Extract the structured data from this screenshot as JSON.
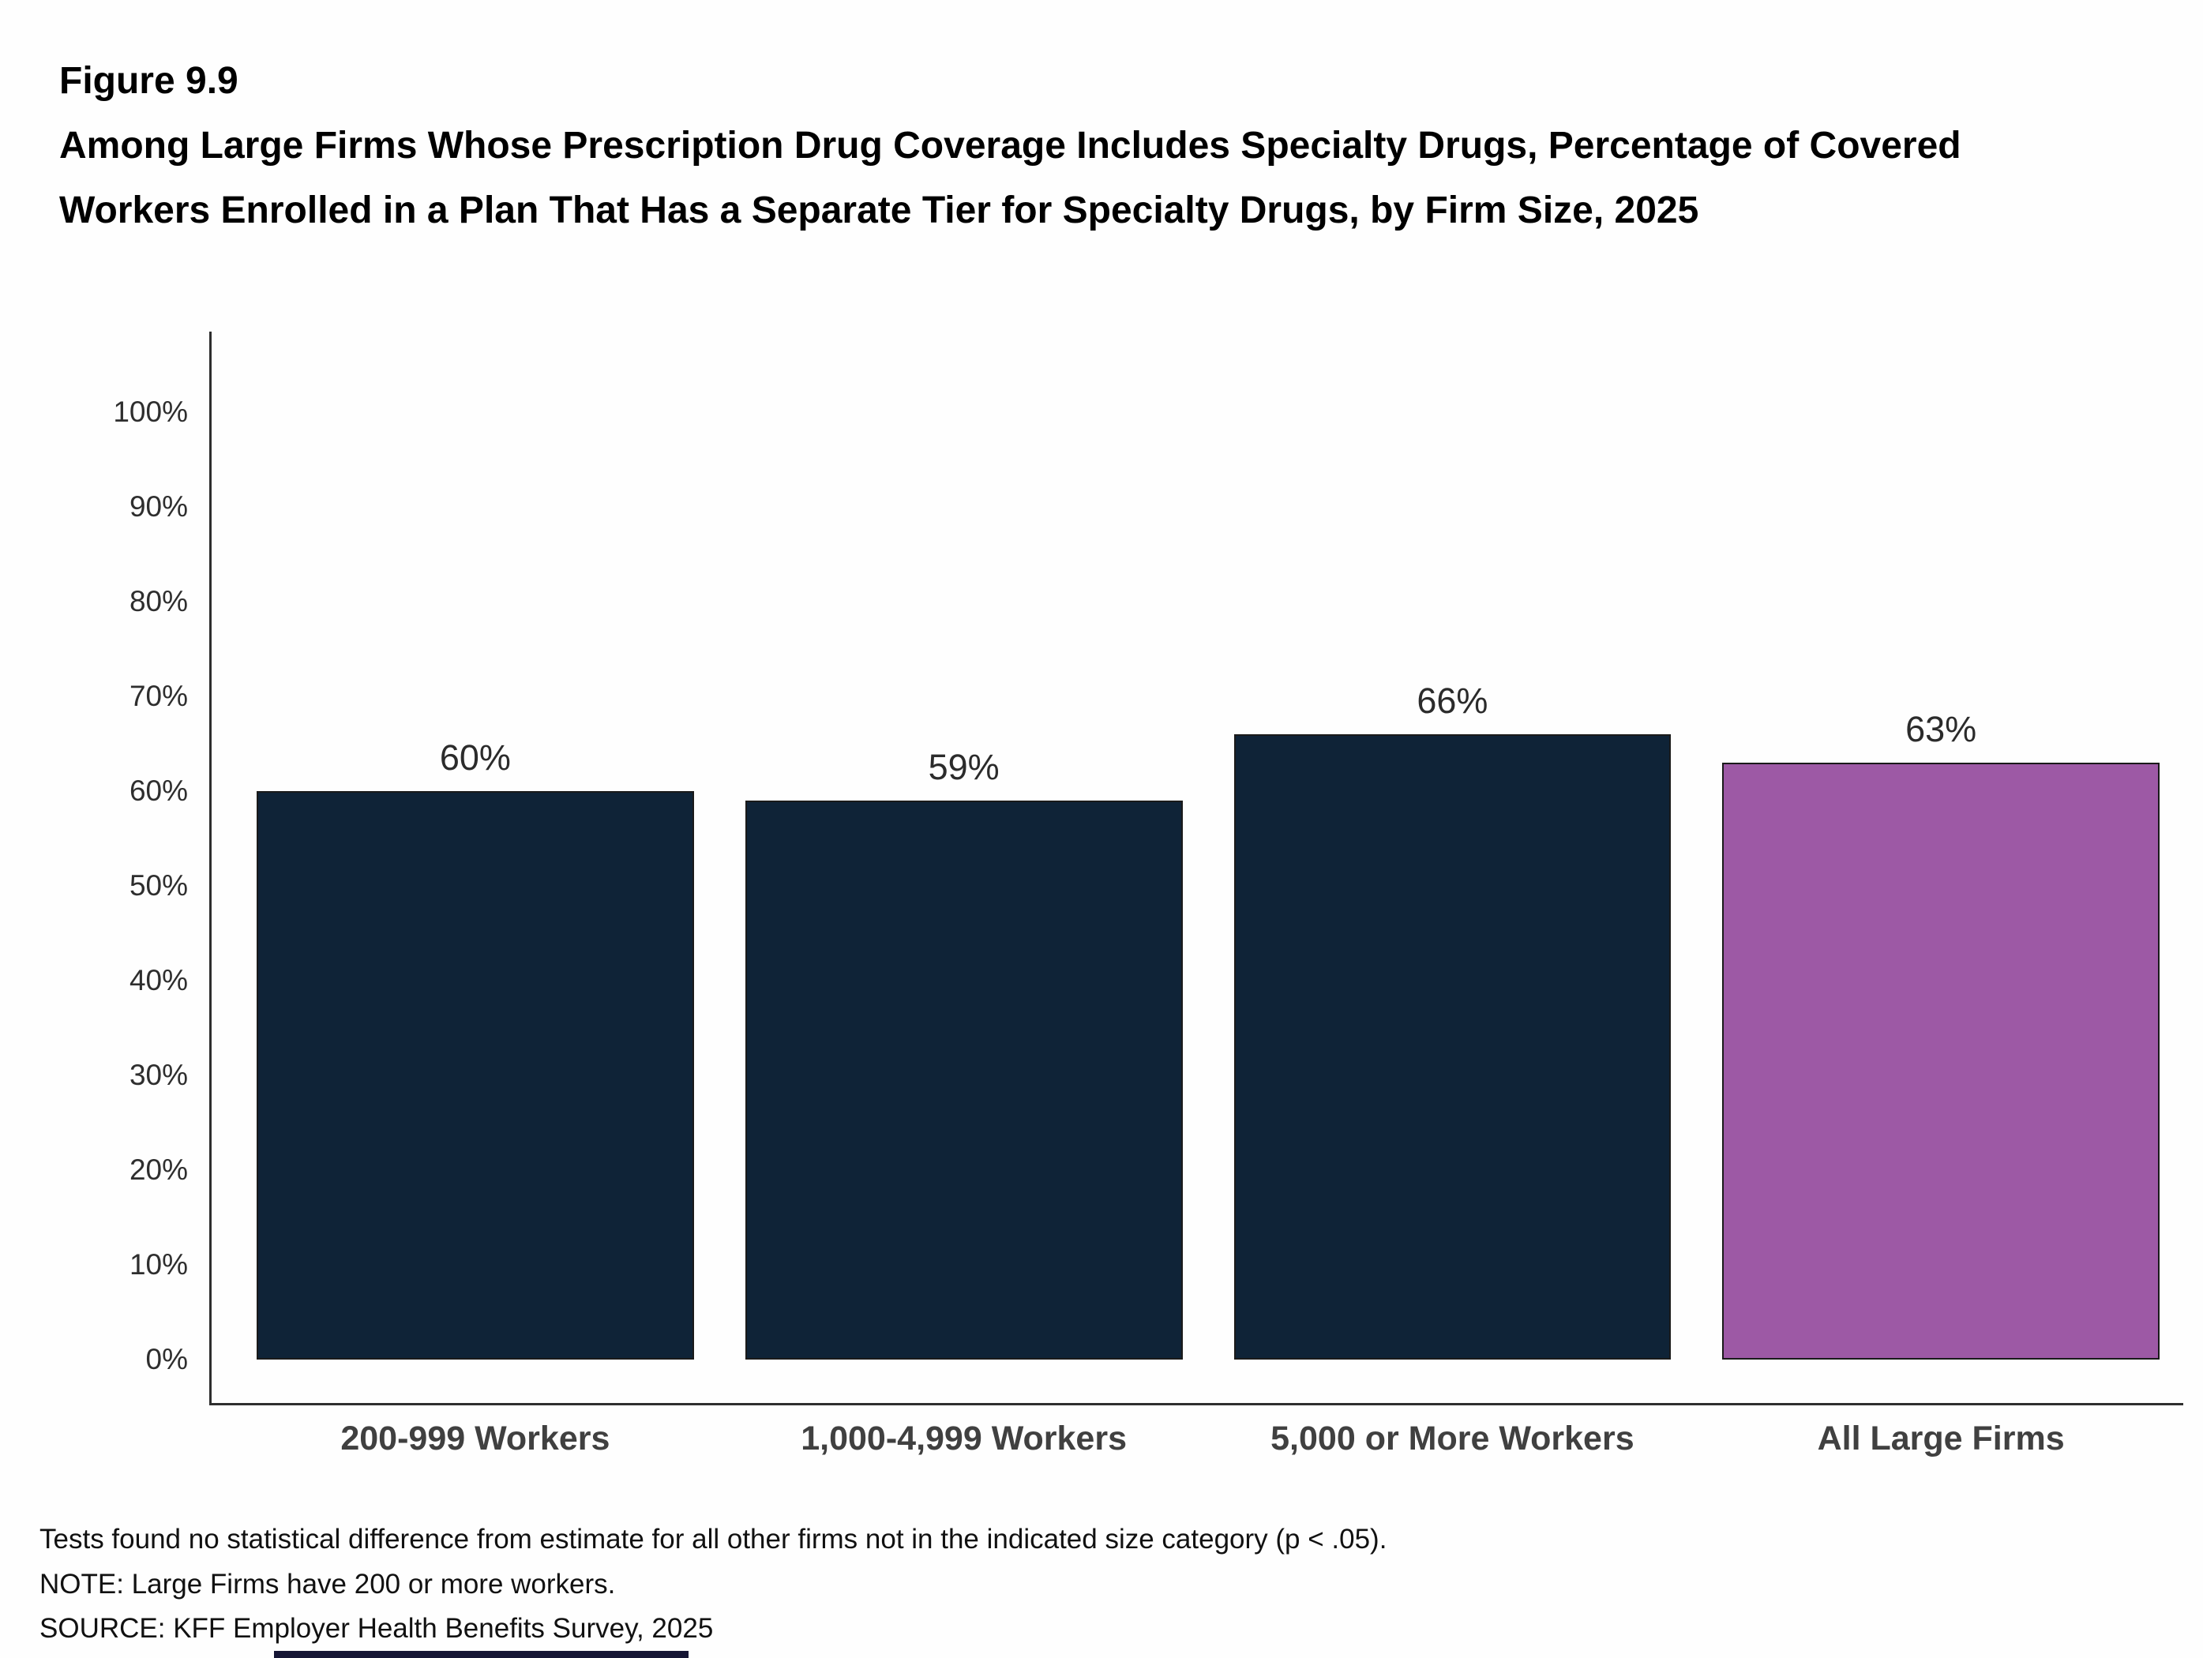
{
  "figure_label": "Figure 9.9",
  "title": "Among Large Firms Whose Prescription Drug Coverage Includes Specialty Drugs, Percentage of Covered Workers Enrolled in a Plan That Has a Separate Tier for Specialty Drugs, by Firm Size, 2025",
  "chart_data": {
    "type": "bar",
    "title": "Among Large Firms Whose Prescription Drug Coverage Includes Specialty Drugs, Percentage of Covered Workers Enrolled in a Plan That Has a Separate Tier for Specialty Drugs, by Firm Size, 2025",
    "categories": [
      "200-999 Workers",
      "1,000-4,999 Workers",
      "5,000 or More Workers",
      "All Large Firms"
    ],
    "values": [
      60,
      59,
      66,
      63
    ],
    "data_labels": [
      "60%",
      "59%",
      "66%",
      "63%"
    ],
    "bar_color_assignment": [
      "default",
      "default",
      "default",
      "highlight"
    ],
    "colors": {
      "default_bar": "#0f2337",
      "highlight_bar": "#9d59a5",
      "bar_outline": "#1a1a1a",
      "axis": "#2e2e2e"
    },
    "ylim": [
      0,
      100
    ],
    "ytick_labels": [
      "0%",
      "10%",
      "20%",
      "30%",
      "40%",
      "50%",
      "60%",
      "70%",
      "80%",
      "90%",
      "100%"
    ],
    "grid": false,
    "legend": "none",
    "xlabel": "",
    "ylabel": ""
  },
  "footnotes": [
    "Tests found no statistical difference from estimate for all other firms not in the indicated size category (p < .05).",
    "NOTE: Large Firms have 200 or more workers.",
    "SOURCE: KFF Employer Health Benefits Survey, 2025"
  ]
}
